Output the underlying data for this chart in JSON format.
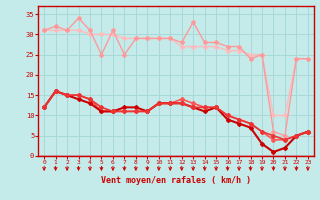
{
  "title": "",
  "xlabel": "Vent moyen/en rafales ( km/h )",
  "ylabel": "",
  "xlim": [
    -0.5,
    23.5
  ],
  "ylim": [
    0,
    37
  ],
  "yticks": [
    0,
    5,
    10,
    15,
    20,
    25,
    30,
    35
  ],
  "xticks": [
    0,
    1,
    2,
    3,
    4,
    5,
    6,
    7,
    8,
    9,
    10,
    11,
    12,
    13,
    14,
    15,
    16,
    17,
    18,
    19,
    20,
    21,
    22,
    23
  ],
  "background_color": "#c5eaea",
  "grid_color": "#a8d8d8",
  "lines": [
    {
      "x": [
        0,
        1,
        2,
        3,
        4,
        5,
        6,
        7,
        8,
        9,
        10,
        11,
        12,
        13,
        14,
        15,
        16,
        17,
        18,
        19,
        20,
        21,
        22,
        23
      ],
      "y": [
        31,
        31,
        31,
        31,
        30,
        30,
        30,
        29,
        29,
        29,
        29,
        29,
        27,
        27,
        27,
        27,
        26,
        26,
        25,
        25,
        10,
        10,
        24,
        24
      ],
      "color": "#ffbbbb",
      "lw": 1.0,
      "marker": "D",
      "ms": 2.0
    },
    {
      "x": [
        0,
        1,
        2,
        3,
        4,
        5,
        6,
        7,
        8,
        9,
        10,
        11,
        12,
        13,
        14,
        15,
        16,
        17,
        18,
        19,
        20,
        21,
        22,
        23
      ],
      "y": [
        31,
        32,
        31,
        34,
        31,
        25,
        31,
        25,
        29,
        29,
        29,
        29,
        28,
        33,
        28,
        28,
        27,
        27,
        24,
        25,
        6,
        5,
        24,
        24
      ],
      "color": "#ff9999",
      "lw": 1.0,
      "marker": "D",
      "ms": 2.0
    },
    {
      "x": [
        0,
        1,
        2,
        3,
        4,
        5,
        6,
        7,
        8,
        9,
        10,
        11,
        12,
        13,
        14,
        15,
        16,
        17,
        18,
        19,
        20,
        21,
        22,
        23
      ],
      "y": [
        12,
        16,
        15,
        15,
        14,
        11,
        11,
        11,
        11,
        11,
        13,
        13,
        14,
        13,
        12,
        12,
        10,
        9,
        8,
        6,
        4,
        4,
        5,
        6
      ],
      "color": "#ff5555",
      "lw": 1.2,
      "marker": "D",
      "ms": 2.0
    },
    {
      "x": [
        0,
        1,
        2,
        3,
        4,
        5,
        6,
        7,
        8,
        9,
        10,
        11,
        12,
        13,
        14,
        15,
        16,
        17,
        18,
        19,
        20,
        21,
        22,
        23
      ],
      "y": [
        12,
        16,
        15,
        14,
        13,
        11,
        11,
        12,
        12,
        11,
        13,
        13,
        13,
        12,
        11,
        12,
        9,
        8,
        7,
        3,
        1,
        2,
        5,
        6
      ],
      "color": "#cc0000",
      "lw": 1.5,
      "marker": "D",
      "ms": 2.0
    },
    {
      "x": [
        0,
        1,
        2,
        3,
        4,
        5,
        6,
        7,
        8,
        9,
        10,
        11,
        12,
        13,
        14,
        15,
        16,
        17,
        18,
        19,
        20,
        21,
        22,
        23
      ],
      "y": [
        12,
        16,
        15,
        15,
        14,
        12,
        11,
        11,
        11,
        11,
        13,
        13,
        13,
        12,
        12,
        12,
        10,
        9,
        8,
        6,
        5,
        4,
        5,
        6
      ],
      "color": "#ee3333",
      "lw": 1.2,
      "marker": "D",
      "ms": 2.0
    }
  ],
  "axis_color": "#cc0000",
  "tick_color": "#cc0000",
  "label_color": "#cc0000"
}
